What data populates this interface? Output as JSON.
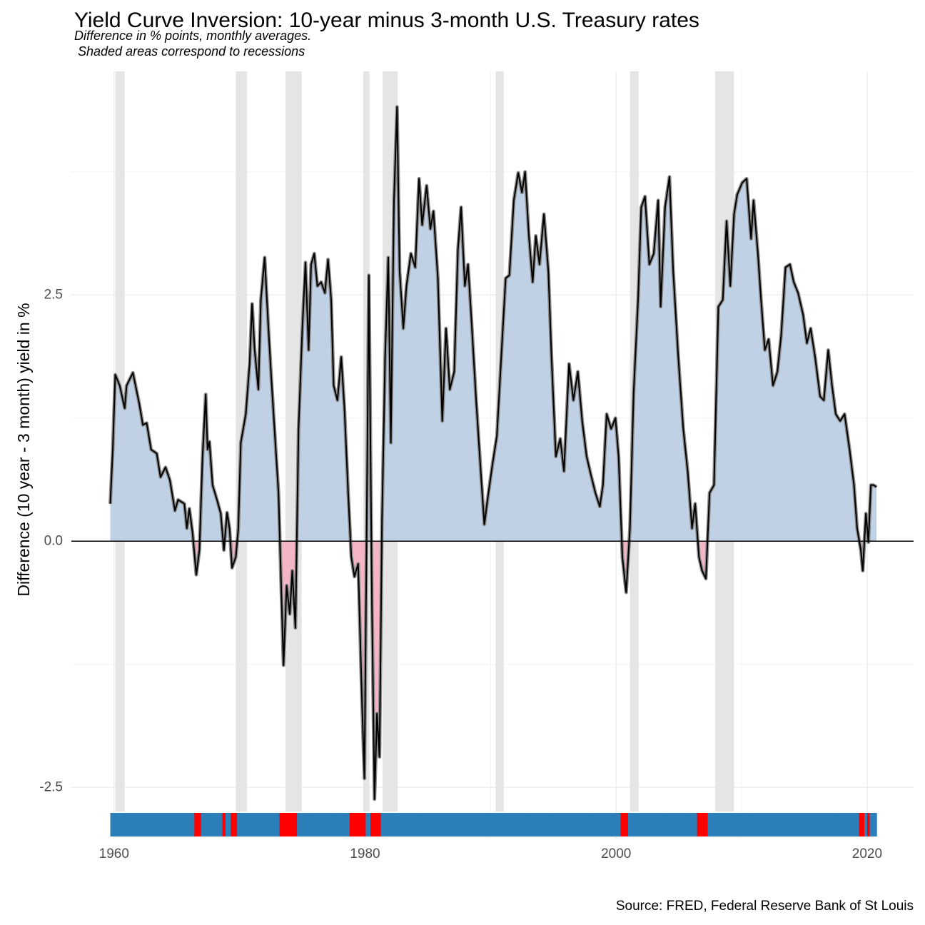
{
  "chart_data": {
    "type": "area",
    "title": "Yield Curve Inversion: 10-year minus 3-month U.S. Treasury rates",
    "subtitle_lines": [
      "Difference in % points,  monthly averages.",
      " Shaded areas correspond to recessions"
    ],
    "y_label": "Difference (10 year - 3 month) yield in %",
    "source": "Source: FRED, Federal Reserve Bank of St Louis",
    "xlim": [
      1956.6,
      2023.7
    ],
    "xticks": [
      1960,
      1980,
      2000,
      2020
    ],
    "ylim": [
      -3.02,
      4.77
    ],
    "yticks": [
      -2.5,
      {
        "value": 0,
        "label": "0.0"
      },
      2.5
    ],
    "grid": true,
    "colors": {
      "positive": "#c0d1e6",
      "negative": "#f4b6c6",
      "line": "#000000",
      "recession": "#e5e5e5",
      "strip": "#2c7fb8",
      "strip_inverted": "#ff0000"
    },
    "recessions": [
      [
        1960.1,
        1960.85
      ],
      [
        1969.7,
        1970.6
      ],
      [
        1973.65,
        1974.95
      ],
      [
        1979.85,
        1980.35
      ],
      [
        1981.4,
        1982.6
      ],
      [
        1990.4,
        1991.05
      ],
      [
        2001.1,
        2001.8
      ],
      [
        2007.9,
        2009.4
      ]
    ],
    "x": [
      1959.7,
      1959.9,
      1960.1,
      1960.45,
      1960.85,
      1961.0,
      1961.5,
      1962.0,
      1962.3,
      1962.6,
      1962.95,
      1963.4,
      1963.7,
      1964.1,
      1964.45,
      1964.85,
      1965.1,
      1965.6,
      1965.8,
      1966.0,
      1966.25,
      1966.55,
      1966.8,
      1967.05,
      1967.3,
      1967.45,
      1967.6,
      1967.85,
      1968.2,
      1968.5,
      1968.75,
      1969.0,
      1969.2,
      1969.4,
      1969.7,
      1969.9,
      1970.1,
      1970.5,
      1970.8,
      1971.0,
      1971.2,
      1971.5,
      1971.7,
      1972.0,
      1972.3,
      1972.5,
      1972.85,
      1973.1,
      1973.25,
      1973.5,
      1973.75,
      1974.0,
      1974.2,
      1974.45,
      1974.7,
      1975.0,
      1975.25,
      1975.5,
      1975.7,
      1975.95,
      1976.2,
      1976.5,
      1976.8,
      1977.05,
      1977.3,
      1977.5,
      1977.8,
      1978.1,
      1978.35,
      1978.65,
      1978.9,
      1979.15,
      1979.45,
      1979.75,
      1979.95,
      1980.15,
      1980.3,
      1980.55,
      1980.75,
      1980.95,
      1981.15,
      1981.35,
      1981.6,
      1981.85,
      1982.05,
      1982.3,
      1982.55,
      1982.75,
      1983.05,
      1983.3,
      1983.65,
      1984.0,
      1984.3,
      1984.55,
      1984.9,
      1985.2,
      1985.45,
      1985.8,
      1986.15,
      1986.45,
      1986.75,
      1987.1,
      1987.4,
      1987.65,
      1987.95,
      1988.2,
      1988.45,
      1988.85,
      1989.25,
      1989.5,
      1989.8,
      1990.15,
      1990.5,
      1990.85,
      1991.2,
      1991.5,
      1991.85,
      1992.2,
      1992.5,
      1992.75,
      1993.05,
      1993.35,
      1993.6,
      1993.9,
      1994.25,
      1994.6,
      1994.85,
      1995.2,
      1995.55,
      1995.85,
      1996.25,
      1996.6,
      1996.95,
      1997.3,
      1997.65,
      1998.0,
      1998.35,
      1998.7,
      1998.95,
      1999.25,
      1999.6,
      1999.95,
      2000.2,
      2000.5,
      2000.8,
      2001.1,
      2001.4,
      2001.75,
      2002.0,
      2002.3,
      2002.65,
      2003.0,
      2003.35,
      2003.55,
      2003.9,
      2004.25,
      2004.55,
      2004.95,
      2005.35,
      2005.7,
      2006.05,
      2006.3,
      2006.6,
      2006.85,
      2007.15,
      2007.45,
      2007.8,
      2008.15,
      2008.5,
      2008.8,
      2009.1,
      2009.4,
      2009.65,
      2010.05,
      2010.4,
      2010.75,
      2010.95,
      2011.3,
      2011.55,
      2011.85,
      2012.15,
      2012.5,
      2012.85,
      2013.15,
      2013.5,
      2013.85,
      2014.15,
      2014.5,
      2014.9,
      2015.2,
      2015.5,
      2015.85,
      2016.25,
      2016.55,
      2016.9,
      2017.2,
      2017.5,
      2017.85,
      2018.2,
      2018.6,
      2018.95,
      2019.2,
      2019.5,
      2019.65,
      2019.9,
      2020.1,
      2020.3,
      2020.5,
      2020.75
    ],
    "values": [
      0.38,
      0.93,
      1.69,
      1.58,
      1.35,
      1.58,
      1.71,
      1.4,
      1.18,
      1.2,
      0.93,
      0.89,
      0.65,
      0.75,
      0.62,
      0.31,
      0.42,
      0.38,
      0.13,
      0.33,
      0.09,
      -0.34,
      -0.09,
      0.86,
      1.49,
      0.93,
      1.01,
      0.57,
      0.42,
      0.28,
      -0.09,
      0.29,
      0.13,
      -0.27,
      -0.16,
      0.13,
      1.0,
      1.29,
      1.8,
      2.41,
      1.94,
      1.54,
      2.45,
      2.88,
      2.16,
      1.72,
      1.0,
      0.49,
      -0.16,
      -1.26,
      -0.45,
      -0.74,
      -0.3,
      -0.88,
      1.14,
      2.16,
      2.83,
      1.94,
      2.81,
      2.92,
      2.59,
      2.63,
      2.52,
      2.86,
      2.45,
      1.58,
      1.43,
      1.87,
      1.36,
      0.49,
      -0.16,
      -0.36,
      -0.23,
      -1.61,
      -2.41,
      0.42,
      2.7,
      -0.67,
      -2.62,
      -1.75,
      -2.19,
      0.2,
      1.87,
      2.88,
      1.0,
      3.46,
      4.41,
      2.74,
      2.16,
      2.59,
      2.92,
      2.78,
      3.68,
      3.21,
      3.61,
      3.17,
      3.35,
      2.67,
      1.22,
      2.16,
      1.54,
      1.72,
      2.96,
      3.39,
      2.59,
      2.81,
      2.3,
      1.43,
      0.64,
      0.17,
      0.46,
      0.78,
      1.07,
      1.87,
      2.67,
      2.7,
      3.46,
      3.74,
      3.54,
      3.75,
      3.1,
      2.63,
      3.1,
      2.81,
      3.32,
      2.74,
      1.87,
      0.86,
      1.04,
      0.71,
      1.8,
      1.43,
      1.72,
      1.22,
      0.86,
      0.67,
      0.49,
      0.35,
      0.57,
      1.29,
      1.14,
      1.25,
      0.86,
      -0.16,
      -0.52,
      0.13,
      1.51,
      2.45,
      3.39,
      3.5,
      2.81,
      2.92,
      3.46,
      2.38,
      3.39,
      3.7,
      2.74,
      1.87,
      1.14,
      0.71,
      0.13,
      0.38,
      -0.16,
      -0.3,
      -0.38,
      0.49,
      0.57,
      2.38,
      2.45,
      3.25,
      2.59,
      3.32,
      3.52,
      3.64,
      3.68,
      3.07,
      3.46,
      2.92,
      2.45,
      1.94,
      2.05,
      1.58,
      1.72,
      2.09,
      2.78,
      2.81,
      2.63,
      2.52,
      2.3,
      2.01,
      2.16,
      1.87,
      1.47,
      1.43,
      1.94,
      1.58,
      1.29,
      1.22,
      1.29,
      0.93,
      0.57,
      0.13,
      -0.09,
      -0.3,
      0.28,
      -0.01,
      0.57,
      0.57,
      0.55
    ]
  }
}
